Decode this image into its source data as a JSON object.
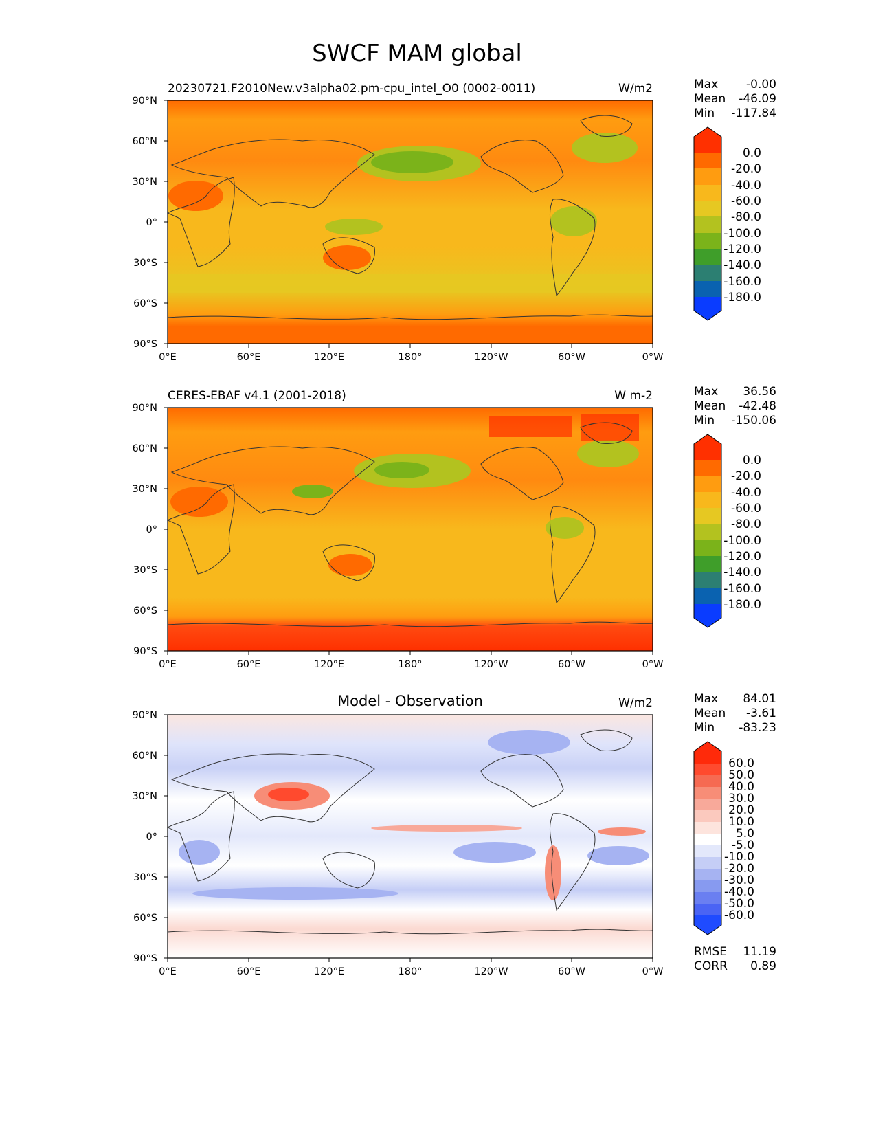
{
  "figure_title": "SWCF MAM global",
  "chart_data": [
    {
      "type": "heatmap",
      "title_left": "20230721.F2010New.v3alpha02.pm-cpu_intel_O0 (0002-0011)",
      "title_center": "",
      "units": "W/m2",
      "stats": [
        {
          "label": "Max",
          "value": "-0.00"
        },
        {
          "label": "Mean",
          "value": "-46.09"
        },
        {
          "label": "Min",
          "value": "-117.84"
        }
      ],
      "colorbar": {
        "labels": [
          "0.0",
          "-20.0",
          "-40.0",
          "-60.0",
          "-80.0",
          "-100.0",
          "-120.0",
          "-140.0",
          "-160.0",
          "-180.0"
        ],
        "colors": [
          "#ff3000",
          "#ff6a00",
          "#ff9c10",
          "#f8b81c",
          "#e6c822",
          "#b3c21f",
          "#7bb31a",
          "#3f9e2a",
          "#2c7f72",
          "#0a62b0",
          "#0a3cff"
        ]
      },
      "xticks": [
        "0°E",
        "60°E",
        "120°E",
        "180°",
        "120°W",
        "60°W",
        "0°W"
      ],
      "yticks": [
        "90°N",
        "60°N",
        "30°N",
        "0°",
        "30°S",
        "60°S",
        "90°S"
      ]
    },
    {
      "type": "heatmap",
      "title_left": "CERES-EBAF v4.1 (2001-2018)",
      "title_center": "",
      "units": "W m-2",
      "stats": [
        {
          "label": "Max",
          "value": "36.56"
        },
        {
          "label": "Mean",
          "value": "-42.48"
        },
        {
          "label": "Min",
          "value": "-150.06"
        }
      ],
      "colorbar": {
        "labels": [
          "0.0",
          "-20.0",
          "-40.0",
          "-60.0",
          "-80.0",
          "-100.0",
          "-120.0",
          "-140.0",
          "-160.0",
          "-180.0"
        ],
        "colors": [
          "#ff3000",
          "#ff6a00",
          "#ff9c10",
          "#f8b81c",
          "#e6c822",
          "#b3c21f",
          "#7bb31a",
          "#3f9e2a",
          "#2c7f72",
          "#0a62b0",
          "#0a3cff"
        ]
      },
      "xticks": [
        "0°E",
        "60°E",
        "120°E",
        "180°",
        "120°W",
        "60°W",
        "0°W"
      ],
      "yticks": [
        "90°N",
        "60°N",
        "30°N",
        "0°",
        "30°S",
        "60°S",
        "90°S"
      ]
    },
    {
      "type": "heatmap",
      "title_left": "",
      "title_center": "Model - Observation",
      "units": "W/m2",
      "stats": [
        {
          "label": "Max",
          "value": "84.01"
        },
        {
          "label": "Mean",
          "value": "-3.61"
        },
        {
          "label": "Min",
          "value": "-83.23"
        }
      ],
      "extra_stats": [
        {
          "label": "RMSE",
          "value": "11.19"
        },
        {
          "label": "CORR",
          "value": "0.89"
        }
      ],
      "colorbar": {
        "labels": [
          "60.0",
          "50.0",
          "40.0",
          "30.0",
          "20.0",
          "10.0",
          "5.0",
          "-5.0",
          "-10.0",
          "-20.0",
          "-30.0",
          "-40.0",
          "-50.0",
          "-60.0"
        ],
        "colors": [
          "#ff2a0a",
          "#ff4a2e",
          "#f66a52",
          "#f78d77",
          "#f8a99a",
          "#fbc9be",
          "#fde4dd",
          "#ffffff",
          "#e3e8fb",
          "#c5cef6",
          "#a6b3f2",
          "#879af0",
          "#6a7ff1",
          "#4a64f4",
          "#1f4bff"
        ]
      },
      "xticks": [
        "0°E",
        "60°E",
        "120°E",
        "180°",
        "120°W",
        "60°W",
        "0°W"
      ],
      "yticks": [
        "90°N",
        "60°N",
        "30°N",
        "0°",
        "30°S",
        "60°S",
        "90°S"
      ]
    }
  ]
}
